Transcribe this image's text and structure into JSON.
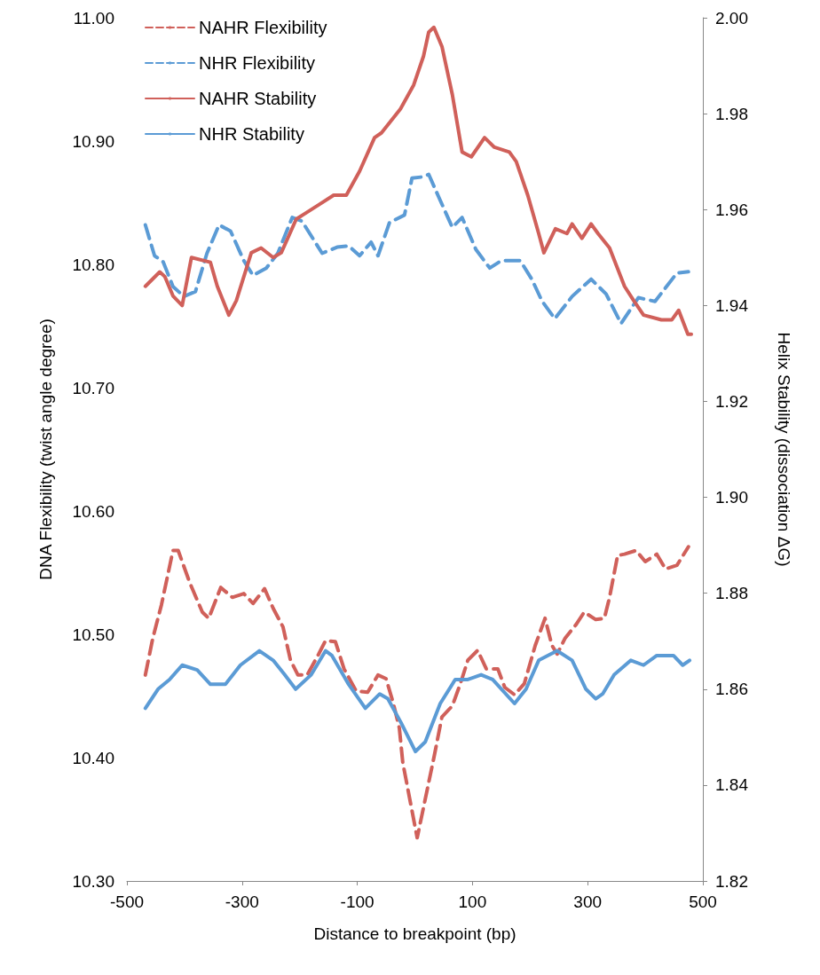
{
  "chart_data": {
    "type": "line",
    "xlabel": "Distance to breakpoint (bp)",
    "ylabel": "DNA Flexibility (twist angle degree)",
    "y2label": "Helix Stability (dissociation ΔG)",
    "xlim": [
      -500,
      500
    ],
    "xticks": [
      -500,
      -300,
      -100,
      100,
      300,
      500
    ],
    "ylim": [
      10.3,
      11.0
    ],
    "yticks": [
      {
        "value": 10.3,
        "label": "10.30"
      },
      {
        "value": 10.4,
        "label": "10.40"
      },
      {
        "value": 10.5,
        "label": "10.50"
      },
      {
        "value": 10.6,
        "label": "10.60"
      },
      {
        "value": 10.7,
        "label": "10.70"
      },
      {
        "value": 10.8,
        "label": "10.80"
      },
      {
        "value": 10.9,
        "label": "10.90"
      },
      {
        "value": 11.0,
        "label": "11.00"
      }
    ],
    "y2lim": [
      1.82,
      2.0
    ],
    "y2ticks": [
      {
        "value": 1.82,
        "label": "1.82"
      },
      {
        "value": 1.84,
        "label": "1.84"
      },
      {
        "value": 1.86,
        "label": "1.86"
      },
      {
        "value": 1.88,
        "label": "1.88"
      },
      {
        "value": 1.9,
        "label": "1.90"
      },
      {
        "value": 1.92,
        "label": "1.92"
      },
      {
        "value": 1.94,
        "label": "1.94"
      },
      {
        "value": 1.96,
        "label": "1.96"
      },
      {
        "value": 1.98,
        "label": "1.98"
      },
      {
        "value": 2.0,
        "label": "2.00"
      }
    ],
    "grid": false,
    "legend": "top left",
    "marker": "none",
    "series": [
      {
        "name": "NAHR Flexibility",
        "color": "#d0605a",
        "line_style": "dashed",
        "x": [
          -468,
          -455,
          -440,
          -420,
          -411,
          -391,
          -369,
          -358,
          -337,
          -317,
          -297,
          -281,
          -261,
          -246,
          -229,
          -216,
          -203,
          -187,
          -167,
          -155,
          -138,
          -123,
          -102,
          -82,
          -64,
          -50,
          -38,
          -27,
          -21,
          4,
          33,
          47,
          65,
          79,
          92,
          109,
          124,
          144,
          156,
          173,
          190,
          209,
          226,
          238,
          247,
          261,
          280,
          294,
          314,
          329,
          338,
          352,
          364,
          384,
          400,
          420,
          435,
          455,
          475
        ],
        "values": [
          10.467,
          10.497,
          10.524,
          10.568,
          10.568,
          10.542,
          10.518,
          10.513,
          10.538,
          10.53,
          10.533,
          10.525,
          10.537,
          10.521,
          10.506,
          10.479,
          10.467,
          10.467,
          10.484,
          10.495,
          10.494,
          10.472,
          10.454,
          10.453,
          10.467,
          10.464,
          10.445,
          10.424,
          10.396,
          10.335,
          10.4,
          10.433,
          10.442,
          10.46,
          10.479,
          10.487,
          10.472,
          10.472,
          10.457,
          10.451,
          10.46,
          10.491,
          10.513,
          10.491,
          10.484,
          10.497,
          10.508,
          10.518,
          10.512,
          10.513,
          10.53,
          10.564,
          10.565,
          10.568,
          10.559,
          10.565,
          10.553,
          10.556,
          10.571
        ]
      },
      {
        "name": "NHR Flexibility",
        "color": "#5b9bd5",
        "line_style": "dashed",
        "x": [
          -468,
          -452,
          -437,
          -420,
          -401,
          -381,
          -361,
          -340,
          -320,
          -297,
          -281,
          -258,
          -238,
          -213,
          -196,
          -161,
          -135,
          -115,
          -96,
          -76,
          -64,
          -44,
          -18,
          -5,
          15,
          24,
          41,
          65,
          82,
          106,
          130,
          150,
          183,
          203,
          221,
          243,
          273,
          306,
          332,
          358,
          388,
          417,
          455,
          475
        ],
        "values": [
          10.832,
          10.807,
          10.802,
          10.782,
          10.774,
          10.778,
          10.809,
          10.832,
          10.827,
          10.803,
          10.791,
          10.797,
          10.809,
          10.838,
          10.835,
          10.809,
          10.814,
          10.815,
          10.807,
          10.818,
          10.807,
          10.834,
          10.84,
          10.87,
          10.871,
          10.873,
          10.855,
          10.83,
          10.838,
          10.812,
          10.797,
          10.803,
          10.803,
          10.788,
          10.77,
          10.756,
          10.774,
          10.788,
          10.776,
          10.752,
          10.773,
          10.77,
          10.793,
          10.794
        ]
      },
      {
        "name": "NAHR Stability",
        "color": "#d0605a",
        "line_style": "solid",
        "axis": "y2",
        "x": [
          -468,
          -443,
          -434,
          -420,
          -404,
          -388,
          -355,
          -343,
          -323,
          -310,
          -284,
          -267,
          -246,
          -232,
          -206,
          -193,
          -167,
          -141,
          -119,
          -96,
          -70,
          -58,
          -25,
          -2,
          15,
          24,
          33,
          47,
          65,
          82,
          98,
          121,
          138,
          164,
          176,
          196,
          215,
          224,
          244,
          264,
          273,
          290,
          306,
          318,
          338,
          364,
          380,
          397,
          428,
          446,
          458,
          474,
          480
        ],
        "values": [
          1.944,
          1.947,
          1.946,
          1.942,
          1.94,
          1.95,
          1.949,
          1.944,
          1.938,
          1.941,
          1.951,
          1.952,
          1.95,
          1.951,
          1.958,
          1.959,
          1.961,
          1.963,
          1.963,
          1.968,
          1.975,
          1.976,
          1.981,
          1.986,
          1.992,
          1.997,
          1.998,
          1.994,
          1.984,
          1.972,
          1.971,
          1.975,
          1.973,
          1.972,
          1.97,
          1.963,
          1.955,
          1.951,
          1.956,
          1.955,
          1.957,
          1.954,
          1.957,
          1.955,
          1.952,
          1.944,
          1.941,
          1.938,
          1.937,
          1.937,
          1.939,
          1.934,
          1.934
        ]
      },
      {
        "name": "NHR Stability",
        "color": "#5b9bd5",
        "line_style": "solid",
        "axis": "y2",
        "x": [
          -468,
          -446,
          -426,
          -404,
          -378,
          -355,
          -329,
          -303,
          -270,
          -246,
          -226,
          -207,
          -180,
          -155,
          -144,
          -115,
          -86,
          -61,
          -47,
          -24,
          1,
          18,
          44,
          70,
          92,
          115,
          135,
          173,
          193,
          215,
          247,
          273,
          297,
          314,
          326,
          346,
          375,
          397,
          420,
          449,
          465,
          477
        ],
        "values": [
          1.856,
          1.86,
          1.862,
          1.865,
          1.864,
          1.861,
          1.861,
          1.865,
          1.868,
          1.866,
          1.863,
          1.86,
          1.863,
          1.868,
          1.867,
          1.861,
          1.856,
          1.859,
          1.858,
          1.853,
          1.847,
          1.849,
          1.857,
          1.862,
          1.862,
          1.863,
          1.862,
          1.857,
          1.86,
          1.866,
          1.868,
          1.866,
          1.86,
          1.858,
          1.859,
          1.863,
          1.866,
          1.865,
          1.867,
          1.867,
          1.865,
          1.866
        ]
      }
    ]
  }
}
